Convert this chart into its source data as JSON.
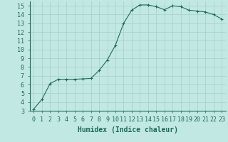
{
  "x": [
    0,
    1,
    2,
    3,
    4,
    5,
    6,
    7,
    8,
    9,
    10,
    11,
    12,
    13,
    14,
    15,
    16,
    17,
    18,
    19,
    20,
    21,
    22,
    23
  ],
  "y": [
    3.2,
    4.3,
    6.1,
    6.6,
    6.6,
    6.6,
    6.65,
    6.7,
    7.6,
    8.8,
    10.5,
    13.0,
    14.5,
    15.1,
    15.1,
    14.9,
    14.55,
    15.0,
    14.9,
    14.5,
    14.4,
    14.3,
    14.0,
    13.5
  ],
  "line_color": "#1a6b5a",
  "marker": "+",
  "marker_color": "#1a6b5a",
  "bg_color": "#c2e8e4",
  "grid_color": "#a8ceca",
  "xlabel": "Humidex (Indice chaleur)",
  "xlim": [
    -0.5,
    23.5
  ],
  "ylim": [
    3,
    15.5
  ],
  "yticks": [
    3,
    4,
    5,
    6,
    7,
    8,
    9,
    10,
    11,
    12,
    13,
    14,
    15
  ],
  "xticks": [
    0,
    1,
    2,
    3,
    4,
    5,
    6,
    7,
    8,
    9,
    10,
    11,
    12,
    13,
    14,
    15,
    16,
    17,
    18,
    19,
    20,
    21,
    22,
    23
  ],
  "tick_color": "#1a6b5a",
  "label_color": "#1a6b5a",
  "font_family": "monospace",
  "xlabel_fontsize": 7,
  "tick_fontsize": 6,
  "line_width": 0.8,
  "marker_size": 3
}
